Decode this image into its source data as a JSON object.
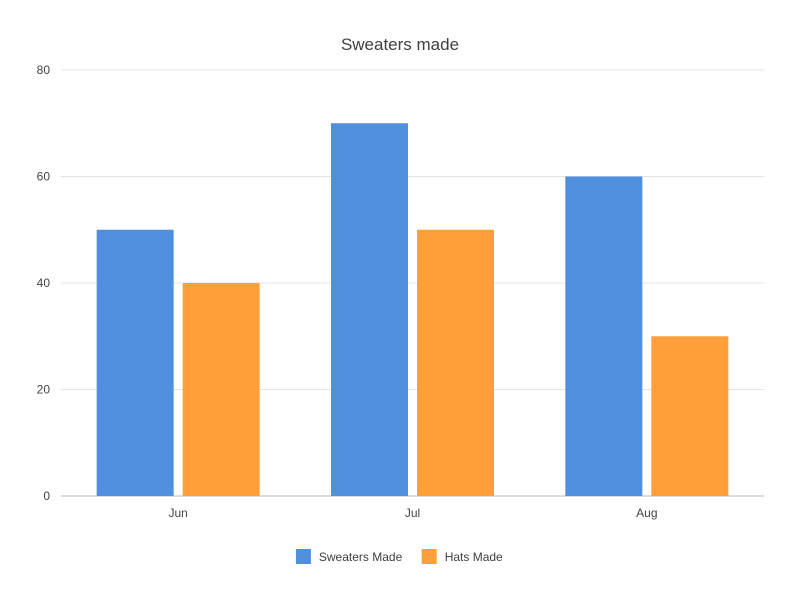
{
  "chart_data": {
    "type": "bar",
    "title": "Sweaters made",
    "xlabel": "",
    "ylabel": "",
    "categories": [
      "Jun",
      "Jul",
      "Aug"
    ],
    "series": [
      {
        "name": "Sweaters Made",
        "color": "#4f8fdd",
        "values": [
          50,
          70,
          60
        ]
      },
      {
        "name": "Hats Made",
        "color": "#ff9f3a",
        "values": [
          40,
          50,
          30
        ]
      }
    ],
    "ylim": [
      0,
      80
    ],
    "yticks": [
      0,
      20,
      40,
      60,
      80
    ],
    "grid": true,
    "legend": "bottom"
  }
}
